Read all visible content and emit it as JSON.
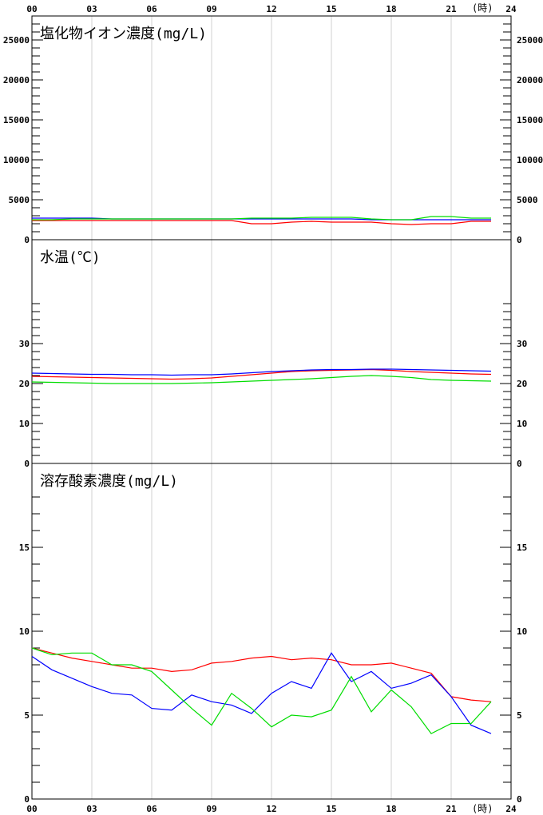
{
  "x_axis": {
    "tick_labels": [
      "00",
      "03",
      "06",
      "09",
      "12",
      "15",
      "18",
      "21",
      "24"
    ],
    "tick_hours": [
      0,
      3,
      6,
      9,
      12,
      15,
      18,
      21,
      24
    ],
    "unit_label": "(時)",
    "range": [
      0,
      24
    ]
  },
  "series_colors": [
    "#ff0000",
    "#0000ff",
    "#00dd00"
  ],
  "grid_color": "#d0d0d0",
  "chart_data": [
    {
      "type": "line",
      "title": "塩化物イオン濃度(mg/L)",
      "ylim": [
        0,
        28000
      ],
      "minor_step": 1000,
      "major_ticks": [
        0,
        5000,
        10000,
        15000,
        20000,
        25000
      ],
      "major_tick_labels": [
        "0",
        "5000",
        "10000",
        "15000",
        "20000",
        "25000"
      ],
      "x": [
        0,
        1,
        2,
        3,
        4,
        5,
        6,
        7,
        8,
        9,
        10,
        11,
        12,
        13,
        14,
        15,
        16,
        17,
        18,
        19,
        20,
        21,
        22,
        23
      ],
      "series": [
        {
          "values": [
            2400,
            2400,
            2400,
            2400,
            2400,
            2400,
            2400,
            2400,
            2400,
            2400,
            2400,
            2000,
            2000,
            2200,
            2300,
            2200,
            2200,
            2200,
            2000,
            1900,
            2000,
            2000,
            2300,
            2300
          ]
        },
        {
          "values": [
            2700,
            2700,
            2700,
            2700,
            2600,
            2600,
            2600,
            2600,
            2600,
            2600,
            2600,
            2600,
            2600,
            2600,
            2600,
            2600,
            2600,
            2500,
            2500,
            2500,
            2500,
            2500,
            2500,
            2500
          ]
        },
        {
          "values": [
            2500,
            2500,
            2600,
            2600,
            2600,
            2600,
            2600,
            2600,
            2600,
            2600,
            2600,
            2700,
            2700,
            2700,
            2800,
            2800,
            2800,
            2600,
            2500,
            2500,
            2900,
            2900,
            2700,
            2700
          ]
        }
      ]
    },
    {
      "type": "line",
      "title": "水温(℃)",
      "ylim": [
        0,
        56
      ],
      "minor_step": 2,
      "minor_max": 40,
      "major_ticks": [
        0,
        10,
        20,
        30
      ],
      "major_tick_labels": [
        "0",
        "10",
        "20",
        "30"
      ],
      "x": [
        0,
        1,
        2,
        3,
        4,
        5,
        6,
        7,
        8,
        9,
        10,
        11,
        12,
        13,
        14,
        15,
        16,
        17,
        18,
        19,
        20,
        21,
        22,
        23
      ],
      "series": [
        {
          "values": [
            21.8,
            21.7,
            21.6,
            21.5,
            21.4,
            21.3,
            21.2,
            21.1,
            21.2,
            21.4,
            21.8,
            22.2,
            22.6,
            23.0,
            23.2,
            23.3,
            23.4,
            23.5,
            23.3,
            23.0,
            22.8,
            22.6,
            22.4,
            22.3
          ]
        },
        {
          "values": [
            22.6,
            22.5,
            22.4,
            22.3,
            22.3,
            22.2,
            22.2,
            22.1,
            22.2,
            22.2,
            22.4,
            22.7,
            23.0,
            23.2,
            23.4,
            23.5,
            23.5,
            23.6,
            23.6,
            23.5,
            23.4,
            23.3,
            23.2,
            23.1
          ]
        },
        {
          "values": [
            20.4,
            20.3,
            20.2,
            20.1,
            20.0,
            20.0,
            20.0,
            20.0,
            20.1,
            20.2,
            20.4,
            20.6,
            20.8,
            21.0,
            21.2,
            21.5,
            21.8,
            22.0,
            21.8,
            21.5,
            21.0,
            20.8,
            20.7,
            20.6
          ]
        }
      ]
    },
    {
      "type": "line",
      "title": "溶存酸素濃度(mg/L)",
      "ylim": [
        0,
        20
      ],
      "minor_step": 1,
      "minor_max": 18,
      "major_ticks": [
        0,
        5,
        10,
        15
      ],
      "major_tick_labels": [
        "0",
        "5",
        "10",
        "15"
      ],
      "x": [
        0,
        1,
        2,
        3,
        4,
        5,
        6,
        7,
        8,
        9,
        10,
        11,
        12,
        13,
        14,
        15,
        16,
        17,
        18,
        19,
        20,
        21,
        22,
        23
      ],
      "series": [
        {
          "values": [
            9.0,
            8.7,
            8.4,
            8.2,
            8.0,
            7.8,
            7.8,
            7.6,
            7.7,
            8.1,
            8.2,
            8.4,
            8.5,
            8.3,
            8.4,
            8.3,
            8.0,
            8.0,
            8.1,
            7.8,
            7.5,
            6.1,
            5.9,
            5.8
          ]
        },
        {
          "values": [
            8.5,
            7.7,
            7.2,
            6.7,
            6.3,
            6.2,
            5.4,
            5.3,
            6.2,
            5.8,
            5.6,
            5.1,
            6.3,
            7.0,
            6.6,
            8.7,
            7.0,
            7.6,
            6.6,
            6.9,
            7.4,
            6.1,
            4.4,
            3.9
          ]
        },
        {
          "values": [
            9.0,
            8.6,
            8.7,
            8.7,
            8.0,
            8.0,
            7.6,
            6.5,
            5.4,
            4.4,
            6.3,
            5.4,
            4.3,
            5.0,
            4.9,
            5.3,
            7.3,
            5.2,
            6.5,
            5.5,
            3.9,
            4.5,
            4.5,
            5.8
          ]
        }
      ]
    }
  ]
}
